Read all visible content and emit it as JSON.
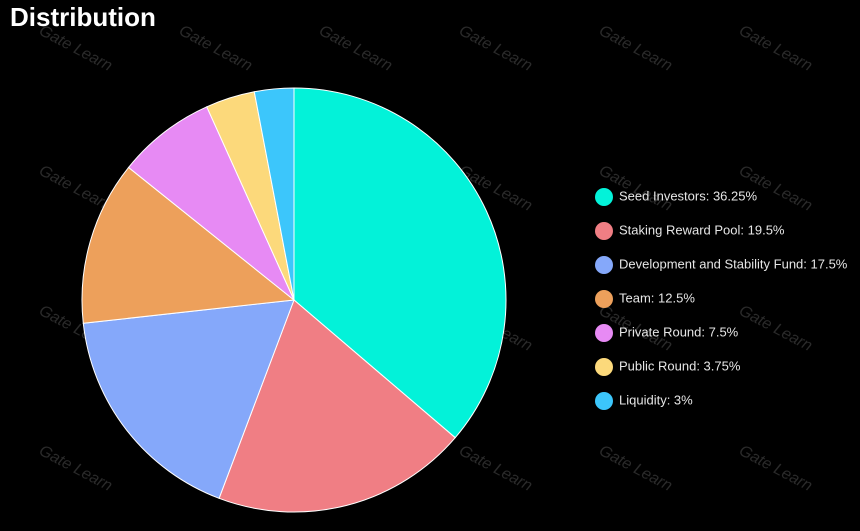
{
  "chart_data": {
    "type": "pie",
    "title": "Distribution",
    "categories": [
      "Seed Investors: 36.25%",
      "Staking Reward Pool: 19.5%",
      "Development and Stability Fund: 17.5%",
      "Team: 12.5%",
      "Private Round: 7.5%",
      "Public Round: 3.75%",
      "Liquidity: 3%"
    ],
    "values": [
      36.25,
      19.5,
      17.5,
      12.5,
      7.5,
      3.75,
      3
    ],
    "colors": [
      "#03f2d9",
      "#f07e84",
      "#85a8fa",
      "#eda05b",
      "#e78af4",
      "#fcd97b",
      "#3cc6fb"
    ],
    "watermark": "Gate Learn"
  }
}
